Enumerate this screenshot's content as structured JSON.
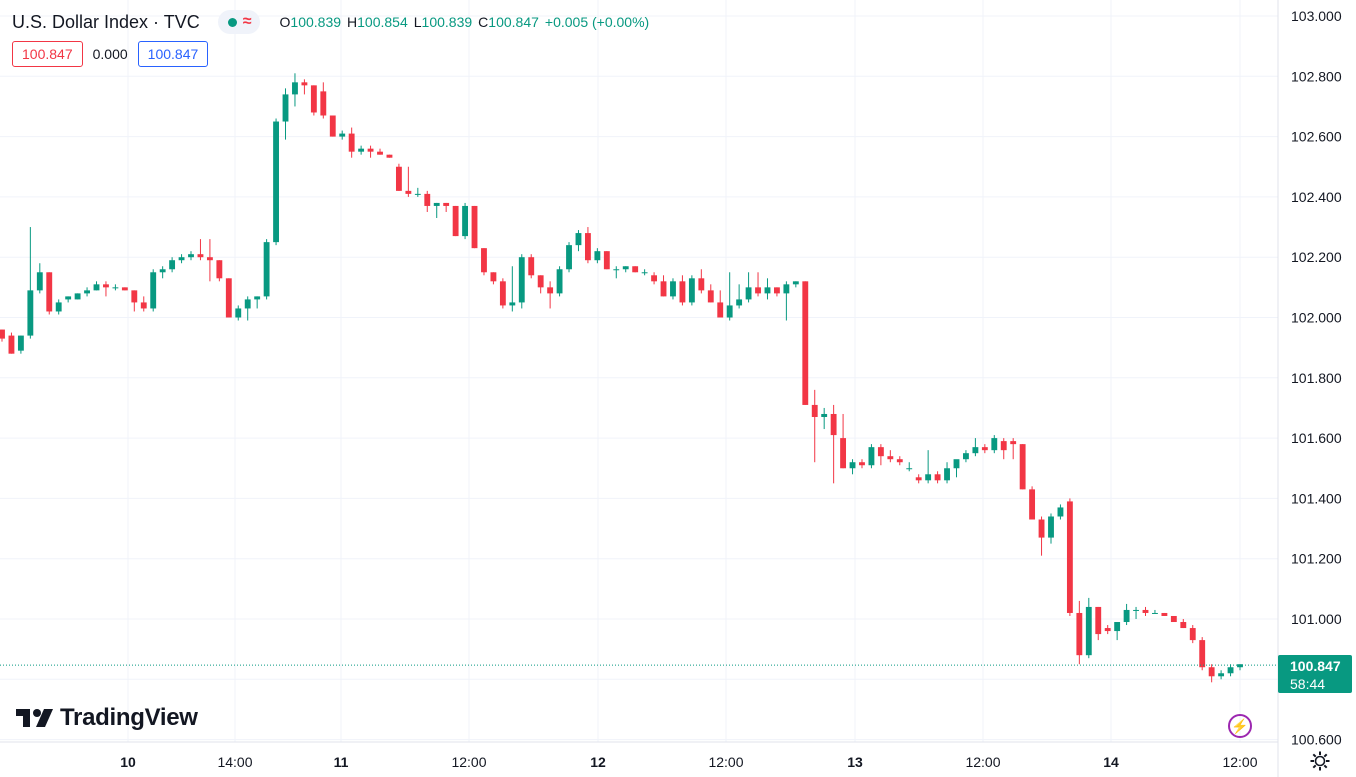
{
  "header": {
    "title": "U.S. Dollar Index · TVC",
    "open_label": "O",
    "open": "100.839",
    "high_label": "H",
    "high": "100.854",
    "low_label": "L",
    "low": "100.839",
    "close_label": "C",
    "close": "100.847",
    "change": "+0.005 (+0.00%)",
    "wave_icon": "≈"
  },
  "trade": {
    "sell": "100.847",
    "spread": "0.000",
    "buy": "100.847"
  },
  "price_tag": {
    "price": "100.847",
    "countdown": "58:44"
  },
  "branding": {
    "logo_text": "TradingView"
  },
  "icons": {
    "bolt": "⚡"
  },
  "colors": {
    "up": "#089981",
    "down": "#f23645",
    "grid": "#f0f3fa",
    "axis_text": "#131722"
  },
  "chart_data": {
    "type": "candlestick",
    "y_ticks": [
      "103.000",
      "102.800",
      "102.600",
      "102.400",
      "102.200",
      "102.000",
      "101.800",
      "101.600",
      "101.400",
      "101.200",
      "101.000",
      "100.800",
      "100.600"
    ],
    "ylim": [
      100.6,
      103.0
    ],
    "x_ticks": [
      "10",
      "14:00",
      "11",
      "12:00",
      "12",
      "12:00",
      "13",
      "12:00",
      "14",
      "12:00"
    ],
    "last_price": 100.847,
    "candles": [
      [
        101.96,
        101.96,
        101.92,
        101.93
      ],
      [
        101.94,
        101.95,
        101.88,
        101.88
      ],
      [
        101.89,
        101.94,
        101.88,
        101.94
      ],
      [
        101.94,
        102.3,
        101.93,
        102.09
      ],
      [
        102.09,
        102.18,
        102.08,
        102.15
      ],
      [
        102.15,
        102.15,
        102.01,
        102.02
      ],
      [
        102.02,
        102.06,
        102.01,
        102.05
      ],
      [
        102.06,
        102.07,
        102.05,
        102.07
      ],
      [
        102.06,
        102.08,
        102.06,
        102.08
      ],
      [
        102.08,
        102.1,
        102.07,
        102.09
      ],
      [
        102.09,
        102.12,
        102.09,
        102.11
      ],
      [
        102.11,
        102.12,
        102.07,
        102.1
      ],
      [
        102.1,
        102.11,
        102.09,
        102.1
      ],
      [
        102.1,
        102.1,
        102.09,
        102.09
      ],
      [
        102.09,
        102.09,
        102.02,
        102.05
      ],
      [
        102.05,
        102.07,
        102.02,
        102.03
      ],
      [
        102.03,
        102.16,
        102.02,
        102.15
      ],
      [
        102.15,
        102.17,
        102.13,
        102.16
      ],
      [
        102.16,
        102.2,
        102.15,
        102.19
      ],
      [
        102.19,
        102.21,
        102.18,
        102.2
      ],
      [
        102.2,
        102.22,
        102.19,
        102.21
      ],
      [
        102.21,
        102.26,
        102.19,
        102.2
      ],
      [
        102.2,
        102.26,
        102.12,
        102.19
      ],
      [
        102.19,
        102.19,
        102.12,
        102.13
      ],
      [
        102.13,
        102.13,
        102.0,
        102.0
      ],
      [
        102.0,
        102.04,
        101.99,
        102.03
      ],
      [
        102.03,
        102.07,
        101.99,
        102.06
      ],
      [
        102.06,
        102.07,
        102.03,
        102.07
      ],
      [
        102.07,
        102.26,
        102.06,
        102.25
      ],
      [
        102.25,
        102.66,
        102.24,
        102.65
      ],
      [
        102.65,
        102.76,
        102.59,
        102.74
      ],
      [
        102.74,
        102.81,
        102.7,
        102.78
      ],
      [
        102.78,
        102.79,
        102.74,
        102.77
      ],
      [
        102.77,
        102.77,
        102.67,
        102.68
      ],
      [
        102.75,
        102.78,
        102.66,
        102.67
      ],
      [
        102.67,
        102.67,
        102.6,
        102.6
      ],
      [
        102.6,
        102.62,
        102.59,
        102.61
      ],
      [
        102.61,
        102.63,
        102.53,
        102.55
      ],
      [
        102.55,
        102.57,
        102.54,
        102.56
      ],
      [
        102.56,
        102.57,
        102.53,
        102.55
      ],
      [
        102.55,
        102.56,
        102.54,
        102.54
      ],
      [
        102.54,
        102.54,
        102.53,
        102.53
      ],
      [
        102.5,
        102.51,
        102.42,
        102.42
      ],
      [
        102.42,
        102.5,
        102.4,
        102.41
      ],
      [
        102.41,
        102.43,
        102.4,
        102.41
      ],
      [
        102.41,
        102.42,
        102.35,
        102.37
      ],
      [
        102.37,
        102.38,
        102.33,
        102.38
      ],
      [
        102.38,
        102.38,
        102.35,
        102.37
      ],
      [
        102.37,
        102.37,
        102.27,
        102.27
      ],
      [
        102.27,
        102.38,
        102.26,
        102.37
      ],
      [
        102.37,
        102.37,
        102.23,
        102.23
      ],
      [
        102.23,
        102.23,
        102.14,
        102.15
      ],
      [
        102.15,
        102.15,
        102.11,
        102.12
      ],
      [
        102.12,
        102.13,
        102.03,
        102.04
      ],
      [
        102.04,
        102.17,
        102.02,
        102.05
      ],
      [
        102.05,
        102.21,
        102.03,
        102.2
      ],
      [
        102.2,
        102.21,
        102.13,
        102.14
      ],
      [
        102.14,
        102.14,
        102.08,
        102.1
      ],
      [
        102.1,
        102.12,
        102.03,
        102.08
      ],
      [
        102.08,
        102.17,
        102.07,
        102.16
      ],
      [
        102.16,
        102.25,
        102.15,
        102.24
      ],
      [
        102.24,
        102.29,
        102.22,
        102.28
      ],
      [
        102.28,
        102.3,
        102.18,
        102.19
      ],
      [
        102.19,
        102.23,
        102.18,
        102.22
      ],
      [
        102.22,
        102.22,
        102.16,
        102.16
      ],
      [
        102.16,
        102.17,
        102.13,
        102.16
      ],
      [
        102.16,
        102.17,
        102.15,
        102.17
      ],
      [
        102.17,
        102.17,
        102.15,
        102.15
      ],
      [
        102.15,
        102.16,
        102.14,
        102.15
      ],
      [
        102.14,
        102.15,
        102.11,
        102.12
      ],
      [
        102.12,
        102.14,
        102.07,
        102.07
      ],
      [
        102.07,
        102.13,
        102.06,
        102.12
      ],
      [
        102.12,
        102.14,
        102.04,
        102.05
      ],
      [
        102.05,
        102.14,
        102.04,
        102.13
      ],
      [
        102.13,
        102.16,
        102.08,
        102.09
      ],
      [
        102.09,
        102.11,
        102.05,
        102.05
      ],
      [
        102.05,
        102.09,
        102.0,
        102.0
      ],
      [
        102.0,
        102.15,
        101.99,
        102.04
      ],
      [
        102.04,
        102.11,
        102.03,
        102.06
      ],
      [
        102.06,
        102.15,
        102.05,
        102.1
      ],
      [
        102.1,
        102.15,
        102.07,
        102.08
      ],
      [
        102.08,
        102.13,
        102.06,
        102.1
      ],
      [
        102.1,
        102.1,
        102.07,
        102.08
      ],
      [
        102.08,
        102.12,
        101.99,
        102.11
      ],
      [
        102.11,
        102.12,
        102.1,
        102.12
      ],
      [
        102.12,
        102.12,
        101.71,
        101.71
      ],
      [
        101.71,
        101.76,
        101.52,
        101.67
      ],
      [
        101.67,
        101.7,
        101.63,
        101.68
      ],
      [
        101.68,
        101.71,
        101.45,
        101.61
      ],
      [
        101.6,
        101.68,
        101.5,
        101.5
      ],
      [
        101.5,
        101.53,
        101.48,
        101.52
      ],
      [
        101.52,
        101.53,
        101.5,
        101.51
      ],
      [
        101.51,
        101.58,
        101.5,
        101.57
      ],
      [
        101.57,
        101.58,
        101.51,
        101.54
      ],
      [
        101.54,
        101.56,
        101.52,
        101.53
      ],
      [
        101.53,
        101.54,
        101.51,
        101.52
      ],
      [
        101.5,
        101.52,
        101.49,
        101.5
      ],
      [
        101.47,
        101.48,
        101.45,
        101.46
      ],
      [
        101.46,
        101.56,
        101.45,
        101.48
      ],
      [
        101.48,
        101.49,
        101.45,
        101.46
      ],
      [
        101.46,
        101.52,
        101.45,
        101.5
      ],
      [
        101.5,
        101.52,
        101.47,
        101.53
      ],
      [
        101.53,
        101.56,
        101.52,
        101.55
      ],
      [
        101.55,
        101.6,
        101.54,
        101.57
      ],
      [
        101.57,
        101.58,
        101.55,
        101.56
      ],
      [
        101.56,
        101.61,
        101.55,
        101.6
      ],
      [
        101.59,
        101.6,
        101.53,
        101.56
      ],
      [
        101.59,
        101.6,
        101.53,
        101.58
      ],
      [
        101.58,
        101.58,
        101.43,
        101.43
      ],
      [
        101.43,
        101.44,
        101.33,
        101.33
      ],
      [
        101.33,
        101.34,
        101.21,
        101.27
      ],
      [
        101.27,
        101.35,
        101.25,
        101.34
      ],
      [
        101.34,
        101.38,
        101.33,
        101.37
      ],
      [
        101.39,
        101.4,
        101.01,
        101.02
      ],
      [
        101.02,
        101.06,
        100.85,
        100.88
      ],
      [
        100.88,
        101.07,
        100.87,
        101.04
      ],
      [
        101.04,
        101.04,
        100.93,
        100.95
      ],
      [
        100.97,
        100.98,
        100.95,
        100.96
      ],
      [
        100.96,
        100.98,
        100.93,
        100.99
      ],
      [
        100.99,
        101.05,
        100.98,
        101.03
      ],
      [
        101.03,
        101.04,
        101.0,
        101.03
      ],
      [
        101.03,
        101.04,
        101.01,
        101.02
      ],
      [
        101.02,
        101.03,
        101.02,
        101.02
      ],
      [
        101.02,
        101.02,
        101.01,
        101.01
      ],
      [
        101.01,
        101.01,
        100.99,
        100.99
      ],
      [
        100.99,
        101.0,
        100.97,
        100.97
      ],
      [
        100.97,
        100.98,
        100.92,
        100.93
      ],
      [
        100.93,
        100.94,
        100.83,
        100.84
      ],
      [
        100.84,
        100.85,
        100.79,
        100.81
      ],
      [
        100.81,
        100.83,
        100.8,
        100.82
      ],
      [
        100.82,
        100.85,
        100.81,
        100.84
      ],
      [
        100.84,
        100.85,
        100.83,
        100.85
      ]
    ]
  }
}
